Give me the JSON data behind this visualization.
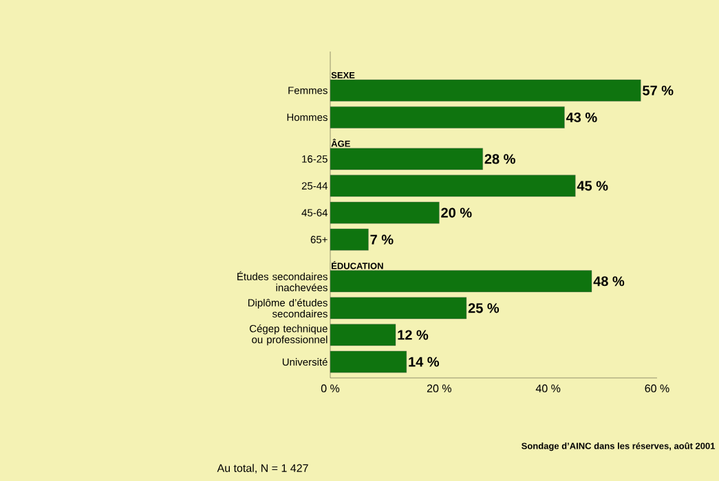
{
  "chart_data": {
    "type": "bar",
    "orientation": "horizontal",
    "categories": [
      "Femmes",
      "Hommes",
      "16-25",
      "25-44",
      "45-64",
      "65+",
      "Études secondaires inachevées",
      "Diplôme d’études secondaires",
      "Cégep technique ou professionnel",
      "Université"
    ],
    "values": [
      57,
      43,
      28,
      45,
      20,
      7,
      48,
      25,
      12,
      14
    ],
    "value_labels": [
      "57 %",
      "43 %",
      "28 %",
      "45 %",
      "20 %",
      "7 %",
      "48 %",
      "25 %",
      "12 %",
      "14 %"
    ],
    "color": "#0f740f",
    "xlim": [
      0,
      60
    ],
    "xticks": [
      {
        "value": 0,
        "label": "0 %"
      },
      {
        "value": 20,
        "label": "20 %"
      },
      {
        "value": 40,
        "label": "40 %"
      },
      {
        "value": 60,
        "label": "60 %"
      }
    ],
    "annotations": [
      "SEXE",
      "ÂGE",
      "ÉDUCATION",
      "Sondage d’AINC dans les réserves, août 2001",
      "Au total, N = 1 427"
    ]
  }
}
